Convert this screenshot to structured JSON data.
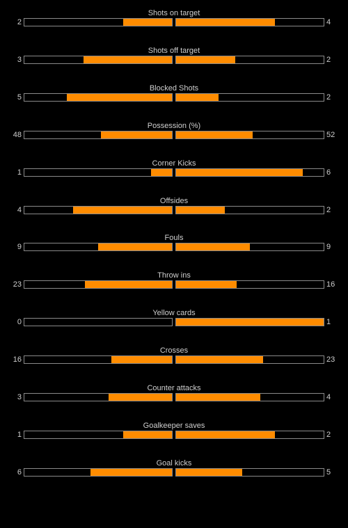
{
  "colors": {
    "background": "#000000",
    "bar_fill": "#ff8c00",
    "bar_border": "#8a8a8a",
    "text": "#cfcfcf"
  },
  "stats": [
    {
      "label": "Shots on target",
      "home": "2",
      "away": "4",
      "home_fill": 0.33,
      "away_fill": 0.67
    },
    {
      "label": "Shots off target",
      "home": "3",
      "away": "2",
      "home_fill": 0.6,
      "away_fill": 0.4
    },
    {
      "label": "Blocked Shots",
      "home": "5",
      "away": "2",
      "home_fill": 0.71,
      "away_fill": 0.29
    },
    {
      "label": "Possession (%)",
      "home": "48",
      "away": "52",
      "home_fill": 0.48,
      "away_fill": 0.52
    },
    {
      "label": "Corner Kicks",
      "home": "1",
      "away": "6",
      "home_fill": 0.14,
      "away_fill": 0.86
    },
    {
      "label": "Offsides",
      "home": "4",
      "away": "2",
      "home_fill": 0.67,
      "away_fill": 0.33
    },
    {
      "label": "Fouls",
      "home": "9",
      "away": "9",
      "home_fill": 0.5,
      "away_fill": 0.5
    },
    {
      "label": "Throw ins",
      "home": "23",
      "away": "16",
      "home_fill": 0.59,
      "away_fill": 0.41
    },
    {
      "label": "Yellow cards",
      "home": "0",
      "away": "1",
      "home_fill": 0.0,
      "away_fill": 1.0
    },
    {
      "label": "Crosses",
      "home": "16",
      "away": "23",
      "home_fill": 0.41,
      "away_fill": 0.59
    },
    {
      "label": "Counter attacks",
      "home": "3",
      "away": "4",
      "home_fill": 0.43,
      "away_fill": 0.57
    },
    {
      "label": "Goalkeeper saves",
      "home": "1",
      "away": "2",
      "home_fill": 0.33,
      "away_fill": 0.67
    },
    {
      "label": "Goal kicks",
      "home": "6",
      "away": "5",
      "home_fill": 0.55,
      "away_fill": 0.45
    }
  ]
}
